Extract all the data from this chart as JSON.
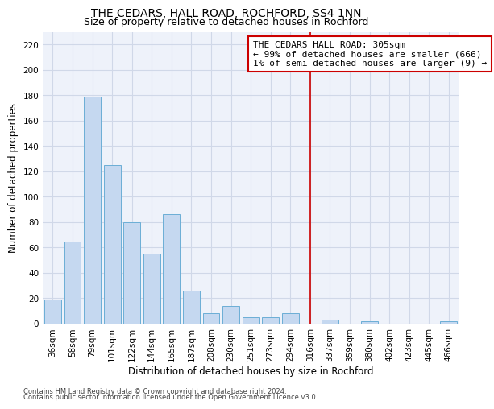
{
  "title": "THE CEDARS, HALL ROAD, ROCHFORD, SS4 1NN",
  "subtitle": "Size of property relative to detached houses in Rochford",
  "xlabel": "Distribution of detached houses by size in Rochford",
  "ylabel": "Number of detached properties",
  "footnote1": "Contains HM Land Registry data © Crown copyright and database right 2024.",
  "footnote2": "Contains public sector information licensed under the Open Government Licence v3.0.",
  "bar_labels": [
    "36sqm",
    "58sqm",
    "79sqm",
    "101sqm",
    "122sqm",
    "144sqm",
    "165sqm",
    "187sqm",
    "208sqm",
    "230sqm",
    "251sqm",
    "273sqm",
    "294sqm",
    "316sqm",
    "337sqm",
    "359sqm",
    "380sqm",
    "402sqm",
    "423sqm",
    "445sqm",
    "466sqm"
  ],
  "bar_values": [
    19,
    65,
    179,
    125,
    80,
    55,
    86,
    26,
    8,
    14,
    5,
    5,
    8,
    0,
    3,
    0,
    2,
    0,
    0,
    0,
    2
  ],
  "bar_color": "#c5d8f0",
  "bar_edge_color": "#6baed6",
  "annotation_text_line1": "THE CEDARS HALL ROAD: 305sqm",
  "annotation_text_line2": "← 99% of detached houses are smaller (666)",
  "annotation_text_line3": "1% of semi-detached houses are larger (9) →",
  "vline_color": "#cc0000",
  "box_edge_color": "#cc0000",
  "ylim_max": 230,
  "yticks": [
    0,
    20,
    40,
    60,
    80,
    100,
    120,
    140,
    160,
    180,
    200,
    220
  ],
  "grid_color": "#d0d8e8",
  "bg_color": "#eef2fa",
  "title_fontsize": 10,
  "subtitle_fontsize": 9,
  "axis_label_fontsize": 8.5,
  "tick_fontsize": 7.5,
  "annotation_fontsize": 8,
  "footnote_fontsize": 6
}
